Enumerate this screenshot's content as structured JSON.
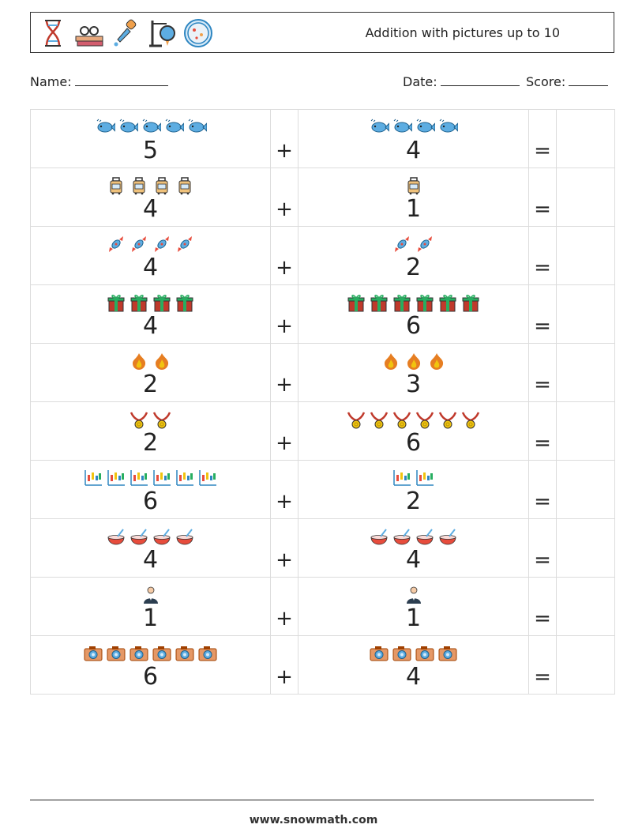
{
  "header": {
    "title": "Addition with pictures up to 10",
    "icons": [
      "dna-icon",
      "books-glasses-icon",
      "pipette-icon",
      "flask-stand-icon",
      "petri-dish-icon"
    ]
  },
  "info": {
    "name_label": "Name:",
    "date_label": "Date:",
    "score_label": "Score:"
  },
  "operators": {
    "plus": "+",
    "equals": "="
  },
  "problems": [
    {
      "a": "5",
      "b": "4",
      "icon": "fish-icon"
    },
    {
      "a": "4",
      "b": "1",
      "icon": "luggage-icon"
    },
    {
      "a": "4",
      "b": "2",
      "icon": "candy-icon"
    },
    {
      "a": "4",
      "b": "6",
      "icon": "gift-icon"
    },
    {
      "a": "2",
      "b": "3",
      "icon": "fire-icon"
    },
    {
      "a": "2",
      "b": "6",
      "icon": "medal-icon"
    },
    {
      "a": "6",
      "b": "2",
      "icon": "candlestick-chart-icon"
    },
    {
      "a": "4",
      "b": "4",
      "icon": "bowl-icon"
    },
    {
      "a": "1",
      "b": "1",
      "icon": "person-icon"
    },
    {
      "a": "6",
      "b": "4",
      "icon": "camera-icon"
    }
  ],
  "footer": {
    "website": "www.snowmath.com"
  }
}
